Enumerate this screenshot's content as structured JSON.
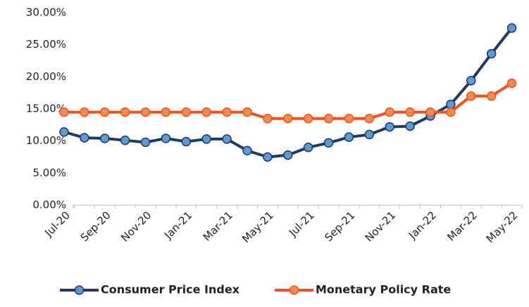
{
  "chart_data": {
    "type": "line",
    "categories": [
      "Jul-20",
      null,
      "Sep-20",
      null,
      "Nov-20",
      null,
      "Jan-21",
      null,
      "Mar-21",
      null,
      "May-21",
      null,
      "Jul-21",
      null,
      "Sep-21",
      null,
      "Nov-21",
      null,
      "Jan-22",
      null,
      "Mar-22",
      null,
      "May-22"
    ],
    "series": [
      {
        "name": "Consumer Price Index",
        "color": "#1f3864",
        "marker_color": "#5b9bd5",
        "values": [
          11.4,
          10.5,
          10.4,
          10.1,
          9.8,
          10.4,
          9.9,
          10.3,
          10.3,
          8.5,
          7.5,
          7.8,
          9.0,
          9.7,
          10.6,
          11.0,
          12.2,
          12.3,
          13.9,
          15.7,
          19.4,
          23.6,
          27.6
        ]
      },
      {
        "name": "Monetary Policy Rate",
        "color": "#f4511e",
        "marker_color": "#f28c4f",
        "values": [
          14.5,
          14.5,
          14.5,
          14.5,
          14.5,
          14.5,
          14.5,
          14.5,
          14.5,
          14.5,
          13.5,
          13.5,
          13.5,
          13.5,
          13.5,
          13.5,
          14.5,
          14.5,
          14.5,
          14.5,
          17,
          17,
          19
        ]
      }
    ],
    "ylim": [
      0,
      30
    ],
    "yticks": [
      {
        "value": 0,
        "label": "0.00%"
      },
      {
        "value": 5,
        "label": "5.00%"
      },
      {
        "value": 10,
        "label": "10.00%"
      },
      {
        "value": 15,
        "label": "15.00%"
      },
      {
        "value": 20,
        "label": "20.00%"
      },
      {
        "value": 25,
        "label": "25.00%"
      },
      {
        "value": 30,
        "label": "30.00%"
      }
    ],
    "grid": false,
    "legend": "bottom"
  }
}
